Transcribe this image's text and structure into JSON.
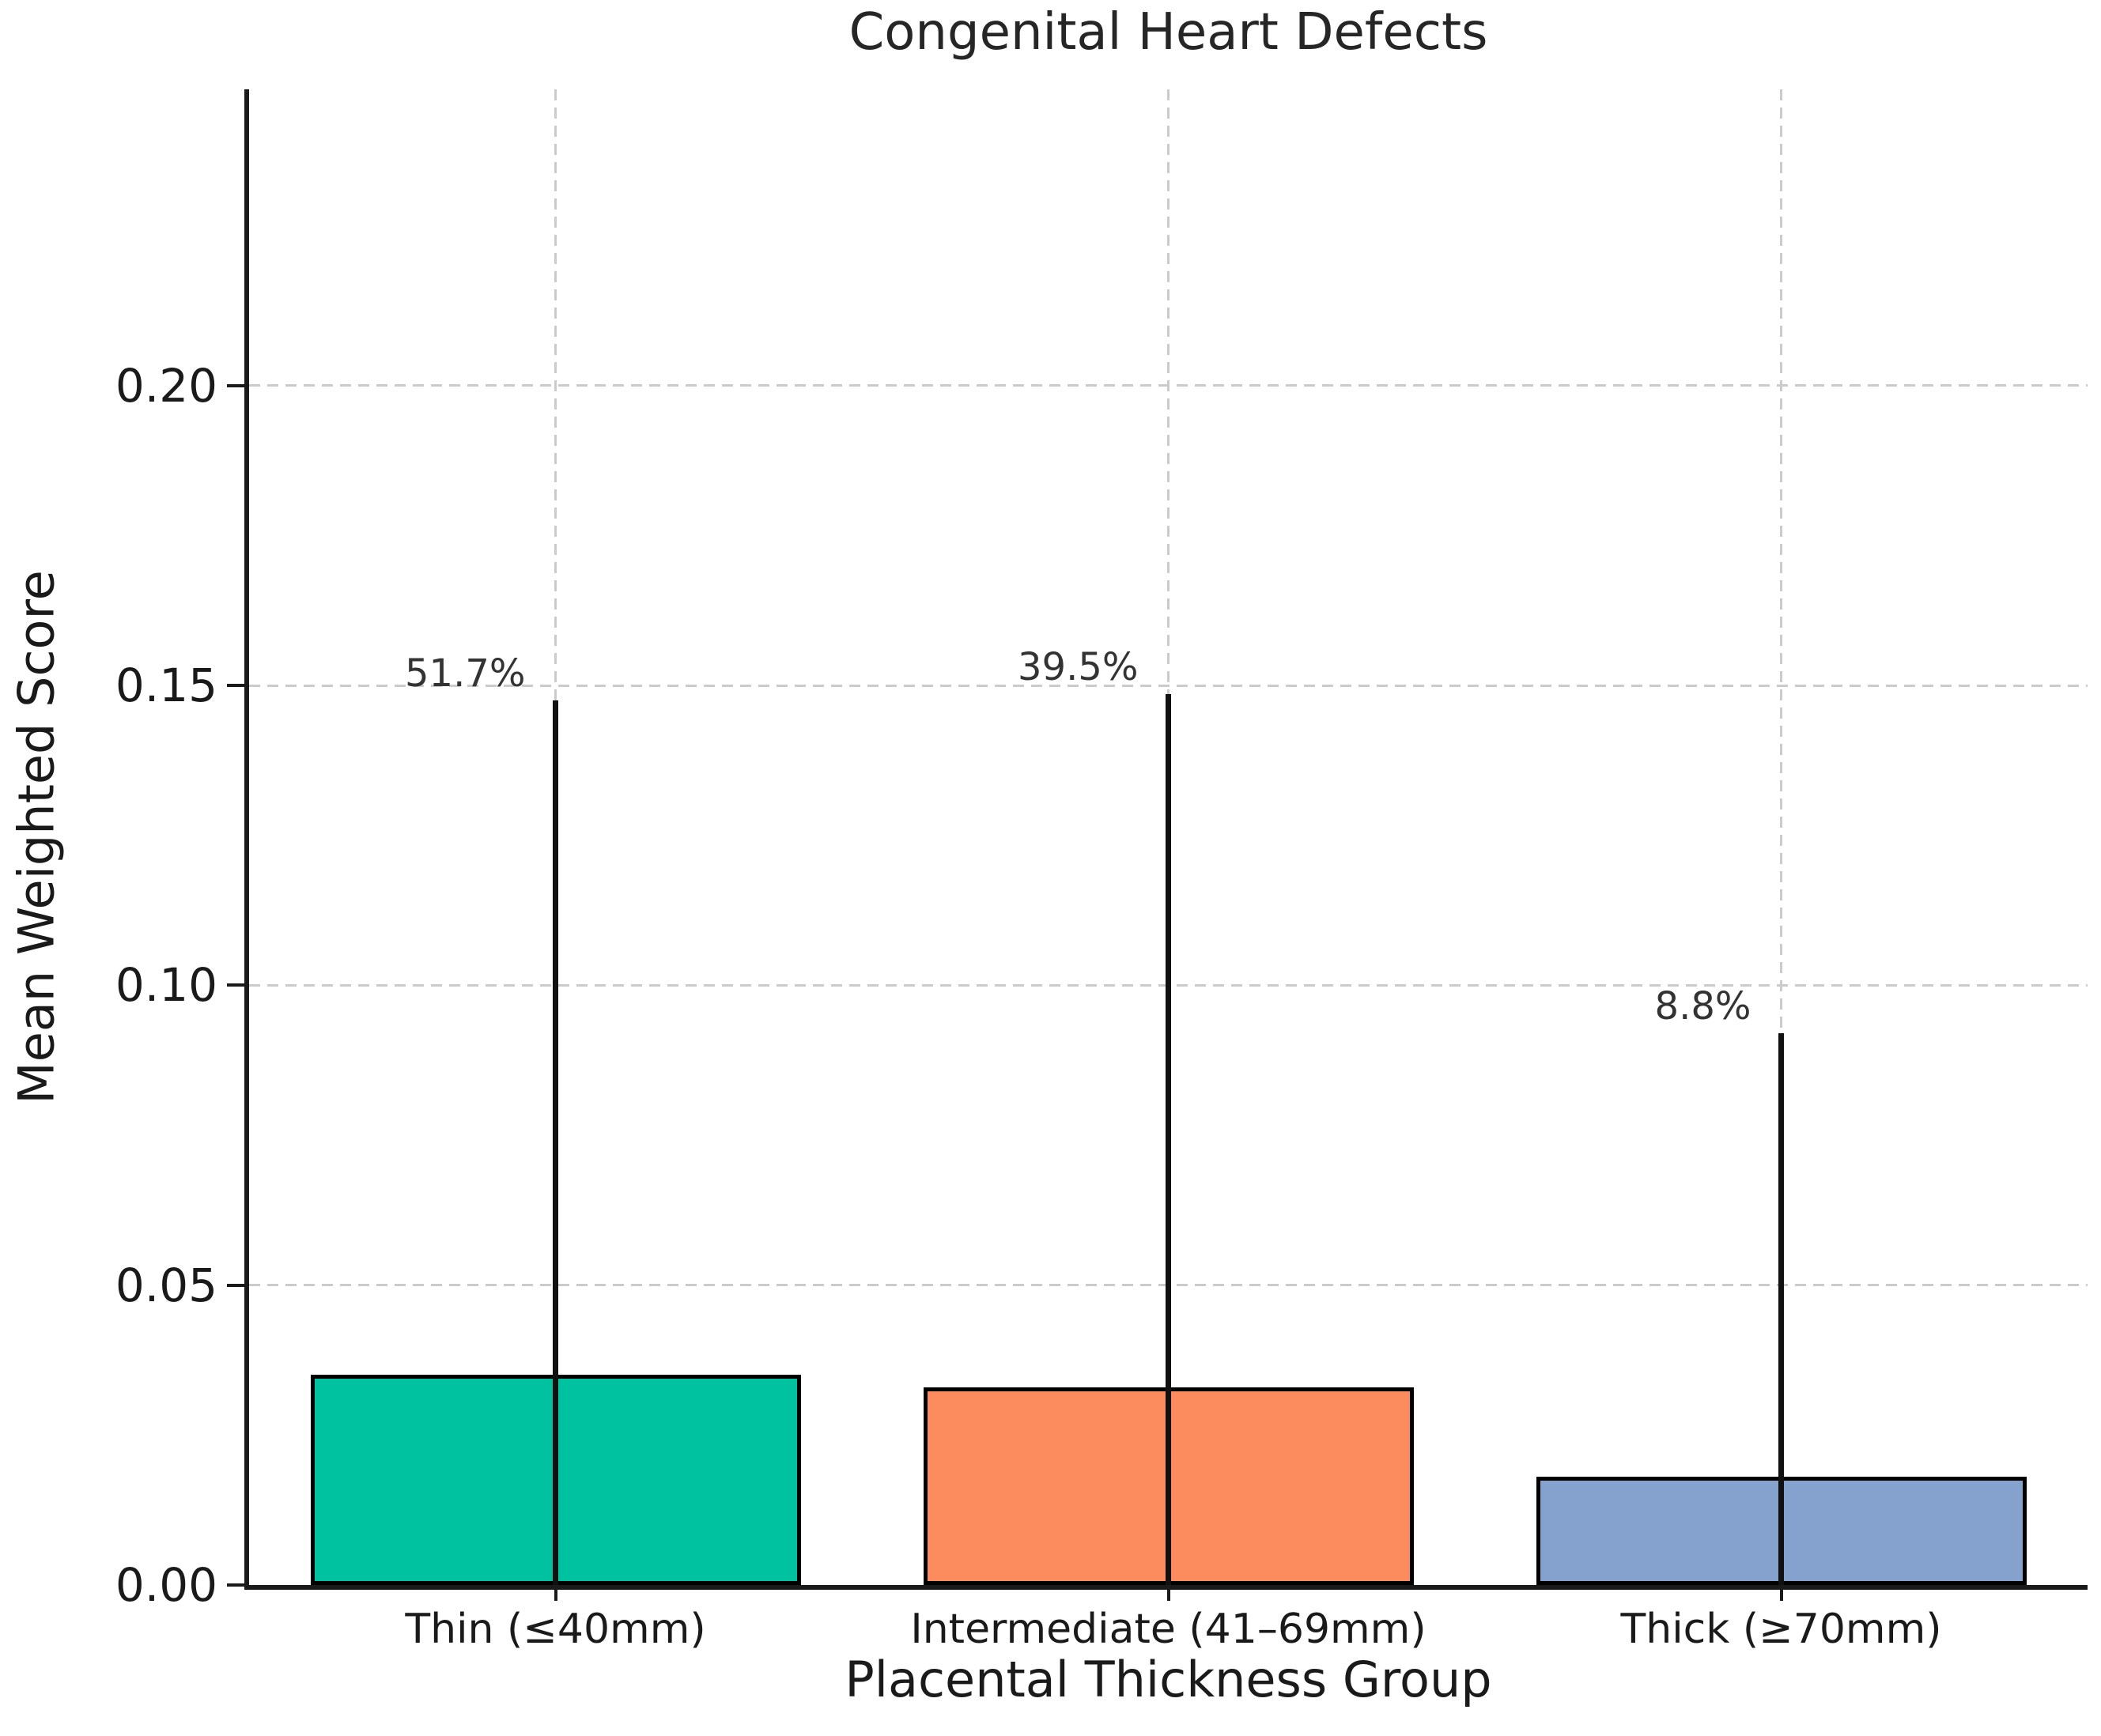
{
  "chart_data": {
    "type": "bar",
    "title": "Congenital Heart Defects",
    "xlabel": "Placental Thickness Group",
    "ylabel": "Mean Weighted Score",
    "categories": [
      "Thin (≤40mm)",
      "Intermediate (41–69mm)",
      "Thick (≥70mm)"
    ],
    "values": [
      0.035,
      0.033,
      0.018
    ],
    "errors_upper": [
      0.1125,
      0.1155,
      0.074
    ],
    "error_bar_tops": [
      0.1475,
      0.1485,
      0.092
    ],
    "bar_value_labels": [
      "51.7%",
      "39.5%",
      "8.8%"
    ],
    "bar_colors": [
      "#00c2a0",
      "#fc8c5e",
      "#85a1cd"
    ],
    "bar_edge_color": "#000000",
    "error_bar_color": "#111111",
    "ylim": [
      0,
      0.2494
    ],
    "yticks": [
      "0.00",
      "0.05",
      "0.10",
      "0.15",
      "0.20"
    ],
    "grid": "both-dashed",
    "grid_color": "#cbcbcb",
    "bar_width_fraction": 0.8,
    "legend_position": "none"
  }
}
